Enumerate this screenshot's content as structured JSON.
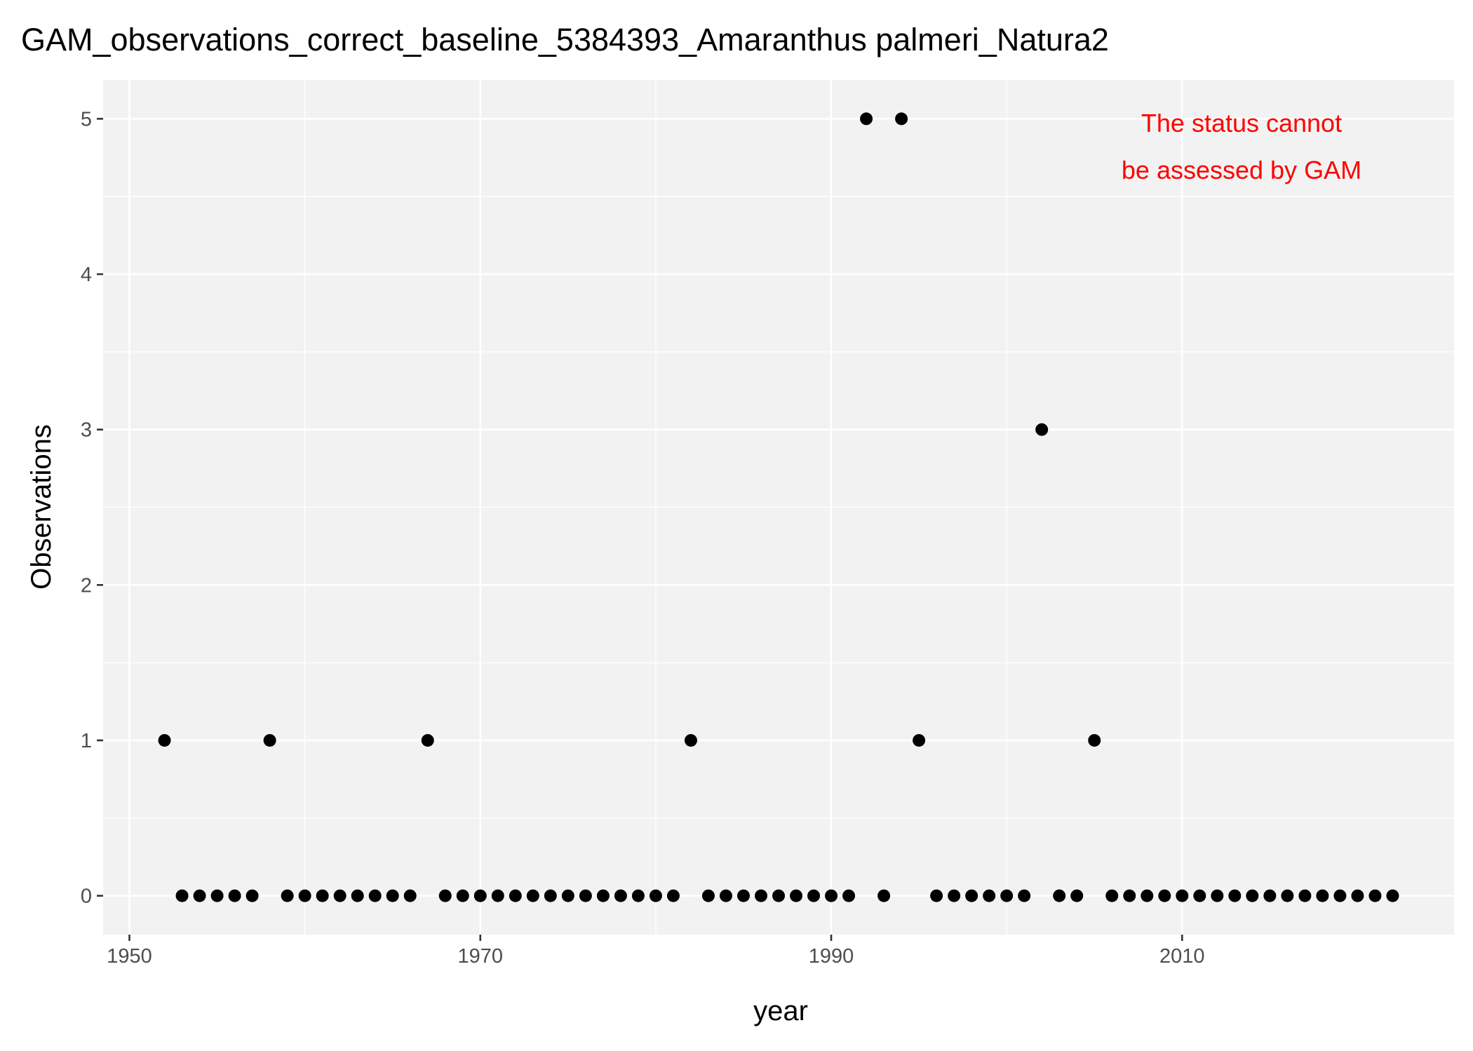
{
  "chart_data": {
    "type": "scatter",
    "title": "GAM_observations_correct_baseline_5384393_Amaranthus palmeri_Natura2",
    "x_label": "year",
    "y_label": "Observations",
    "annotation": [
      "The status cannot",
      "be assessed by GAM"
    ],
    "annotation_color": "#ff0000",
    "color": "#000000",
    "grid": true,
    "minor_grid": true,
    "x": [
      1952,
      1953,
      1954,
      1955,
      1956,
      1957,
      1958,
      1959,
      1960,
      1961,
      1962,
      1963,
      1964,
      1965,
      1966,
      1967,
      1968,
      1969,
      1970,
      1971,
      1972,
      1973,
      1974,
      1975,
      1976,
      1977,
      1978,
      1979,
      1980,
      1981,
      1982,
      1983,
      1984,
      1985,
      1986,
      1987,
      1988,
      1989,
      1990,
      1991,
      1992,
      1993,
      1994,
      1995,
      1996,
      1997,
      1998,
      1999,
      2000,
      2001,
      2002,
      2003,
      2004,
      2005,
      2006,
      2007,
      2008,
      2009,
      2010,
      2011,
      2012,
      2013,
      2014,
      2015,
      2016,
      2017,
      2018,
      2019,
      2020,
      2021,
      2022
    ],
    "values": [
      1,
      0,
      0,
      0,
      0,
      0,
      1,
      0,
      0,
      0,
      0,
      0,
      0,
      0,
      0,
      1,
      0,
      0,
      0,
      0,
      0,
      0,
      0,
      0,
      0,
      0,
      0,
      0,
      0,
      0,
      1,
      0,
      0,
      0,
      0,
      0,
      0,
      0,
      0,
      0,
      5,
      0,
      5,
      1,
      0,
      0,
      0,
      0,
      0,
      0,
      3,
      0,
      0,
      1,
      0,
      0,
      0,
      0,
      0,
      0,
      0,
      0,
      0,
      0,
      0,
      0,
      0,
      0,
      0,
      0,
      0
    ],
    "xlim": [
      1948.5,
      2025.5
    ],
    "xticks": [
      1950,
      1970,
      1990,
      2010
    ],
    "ylim": [
      -0.25,
      5.25
    ],
    "yticks": [
      0,
      1,
      2,
      3,
      4,
      5
    ]
  }
}
